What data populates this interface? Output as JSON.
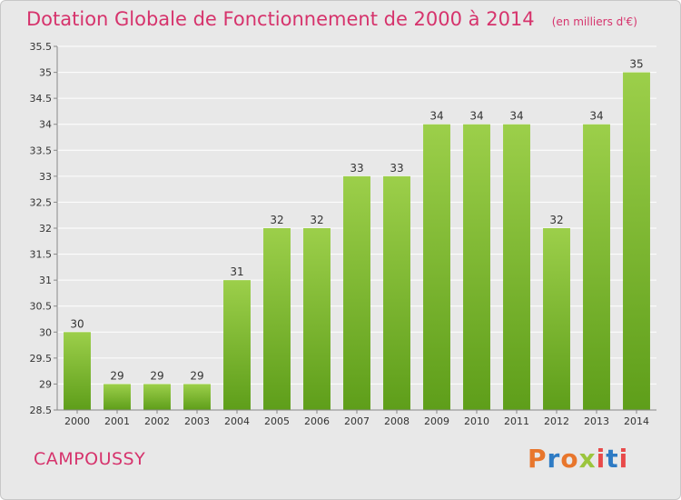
{
  "header": {
    "title": "Dotation Globale de Fonctionnement de 2000 à 2014",
    "subtitle": "(en milliers d'€)"
  },
  "footer": {
    "commune": "CAMPOUSSY",
    "logo": "Proxiti",
    "logo_colors": [
      "#e8762c",
      "#2e7bc4",
      "#e8762c",
      "#9bc53d",
      "#e84a4a",
      "#2e7bc4",
      "#e84a4a"
    ]
  },
  "colors": {
    "accent": "#d6336c",
    "bar_top": "#9ccf4a",
    "bar_bottom": "#5e9e1a",
    "plot_background": "#e8e8e8",
    "grid": "#ffffff"
  },
  "chart_data": {
    "type": "bar",
    "title": "Dotation Globale de Fonctionnement de 2000 à 2014",
    "subtitle": "(en milliers d'€)",
    "categories": [
      "2000",
      "2001",
      "2002",
      "2003",
      "2004",
      "2005",
      "2006",
      "2007",
      "2008",
      "2009",
      "2010",
      "2011",
      "2012",
      "2013",
      "2014"
    ],
    "values": [
      30,
      29,
      29,
      29,
      31,
      32,
      32,
      33,
      33,
      34,
      34,
      34,
      32,
      34,
      35
    ],
    "labels": [
      "30",
      "29",
      "29",
      "29",
      "31",
      "32",
      "32",
      "33",
      "33",
      "34",
      "34",
      "34",
      "32",
      "34",
      "35"
    ],
    "ylim": [
      28.5,
      35.5
    ],
    "yticks": [
      28.5,
      29,
      29.5,
      30,
      30.5,
      31,
      31.5,
      32,
      32.5,
      33,
      33.5,
      34,
      34.5,
      35,
      35.5
    ],
    "ytick_labels": [
      "28.5",
      "29",
      "29.5",
      "30",
      "30.5",
      "31",
      "31.5",
      "32",
      "32.5",
      "33",
      "33.5",
      "34",
      "34.5",
      "35",
      "35.5"
    ],
    "grid": true,
    "legend": false
  }
}
